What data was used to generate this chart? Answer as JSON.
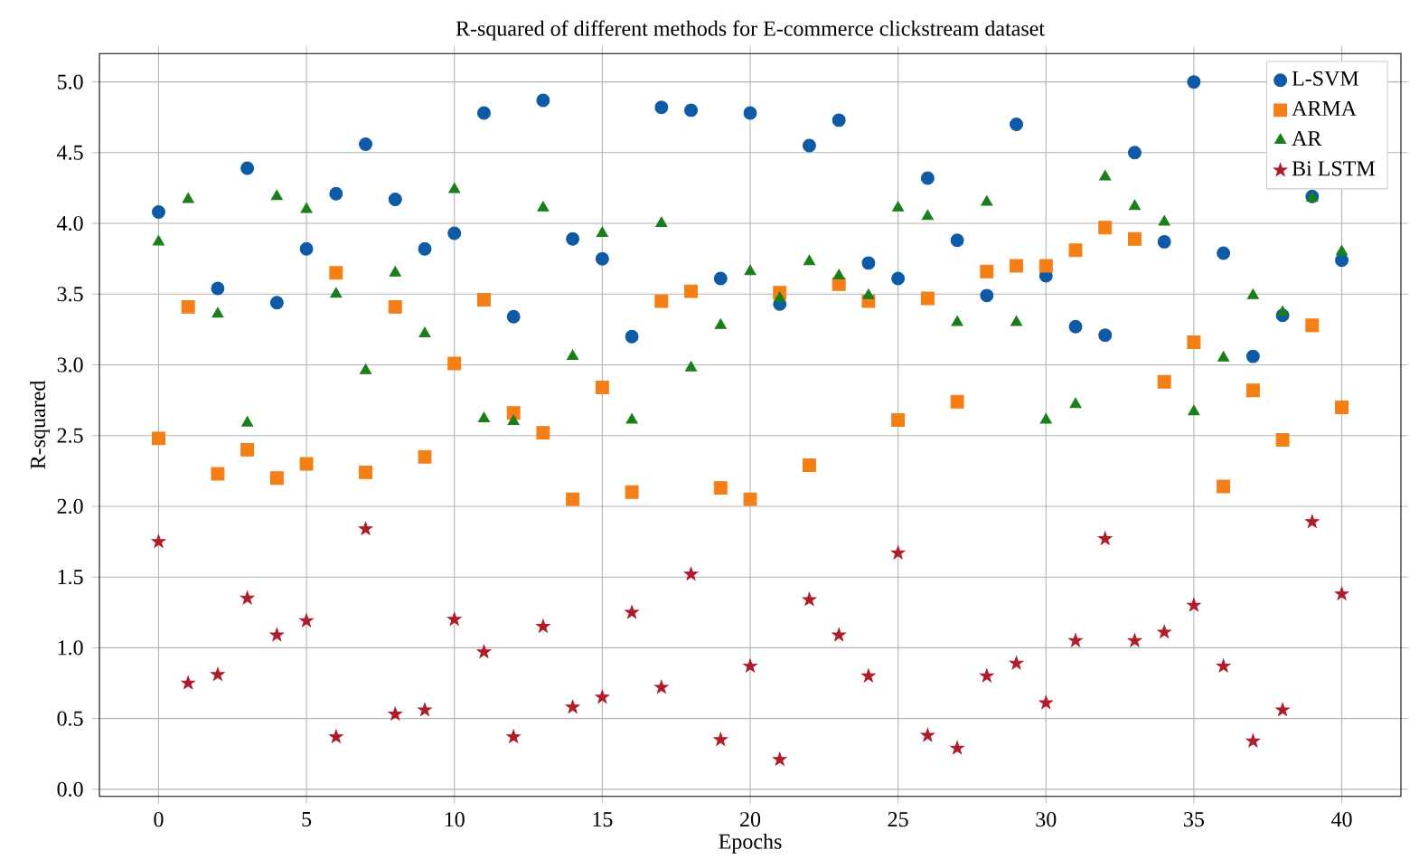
{
  "chart_data": {
    "type": "scatter",
    "title": "R-squared of different methods for E-commerce clickstream dataset",
    "xlabel": "Epochs",
    "ylabel": "R-squared",
    "x": [
      0,
      1,
      2,
      3,
      4,
      5,
      6,
      7,
      8,
      9,
      10,
      11,
      12,
      13,
      14,
      15,
      16,
      17,
      18,
      19,
      20,
      21,
      22,
      23,
      24,
      25,
      26,
      27,
      28,
      29,
      30,
      31,
      32,
      33,
      34,
      35,
      36,
      37,
      38,
      39,
      40
    ],
    "series": [
      {
        "name": "L-SVM",
        "color": "#0f5aa6",
        "marker": "circle",
        "values": [
          4.08,
          null,
          3.54,
          4.39,
          3.44,
          3.82,
          4.21,
          4.56,
          4.17,
          3.82,
          3.93,
          4.78,
          3.34,
          4.87,
          3.89,
          3.75,
          3.2,
          4.82,
          4.8,
          3.61,
          4.78,
          3.43,
          4.55,
          4.73,
          3.72,
          3.61,
          4.32,
          3.88,
          3.49,
          4.7,
          3.63,
          3.27,
          3.21,
          4.5,
          3.87,
          5.0,
          3.79,
          3.06,
          3.35,
          4.19,
          3.74
        ]
      },
      {
        "name": "ARMA",
        "color": "#f57f17",
        "marker": "square",
        "values": [
          2.48,
          3.41,
          2.23,
          2.4,
          2.2,
          2.3,
          3.65,
          2.24,
          3.41,
          2.35,
          3.01,
          3.46,
          2.66,
          2.52,
          2.05,
          2.84,
          2.1,
          3.45,
          3.52,
          2.13,
          2.05,
          3.51,
          2.29,
          3.57,
          3.45,
          2.61,
          3.47,
          2.74,
          3.66,
          3.7,
          3.7,
          3.81,
          3.97,
          3.89,
          2.88,
          3.16,
          2.14,
          2.82,
          2.47,
          3.28,
          2.7
        ]
      },
      {
        "name": "AR",
        "color": "#1a7f1a",
        "marker": "triangle",
        "values": [
          3.87,
          4.17,
          3.36,
          2.59,
          4.19,
          4.1,
          3.5,
          2.96,
          3.65,
          3.22,
          4.24,
          2.62,
          2.6,
          4.11,
          3.06,
          3.93,
          2.61,
          4.0,
          2.98,
          3.28,
          3.66,
          3.47,
          3.73,
          3.63,
          3.49,
          4.11,
          4.05,
          3.3,
          4.15,
          3.3,
          2.61,
          2.72,
          4.33,
          4.12,
          4.01,
          2.67,
          3.05,
          3.49,
          3.37,
          4.18,
          3.8
        ]
      },
      {
        "name": "Bi LSTM",
        "color": "#b01c2c",
        "marker": "star",
        "values": [
          1.75,
          0.75,
          0.81,
          1.35,
          1.09,
          1.19,
          0.37,
          1.84,
          0.53,
          0.56,
          1.2,
          0.97,
          0.37,
          1.15,
          0.58,
          0.65,
          1.25,
          0.72,
          1.52,
          0.35,
          0.87,
          0.21,
          1.34,
          1.09,
          0.8,
          1.67,
          0.38,
          0.29,
          0.8,
          0.89,
          0.61,
          1.05,
          1.77,
          1.05,
          1.11,
          1.3,
          0.87,
          0.34,
          0.56,
          1.89,
          1.38
        ]
      }
    ],
    "xlim": [
      -2,
      42
    ],
    "ylim": [
      -0.05,
      5.2
    ],
    "xticks": [
      0,
      5,
      10,
      15,
      20,
      25,
      30,
      35,
      40
    ],
    "yticks": [
      {
        "value": 0,
        "label": "0.0"
      },
      {
        "value": 0.5,
        "label": "0.5"
      },
      {
        "value": 1,
        "label": "1.0"
      },
      {
        "value": 1.5,
        "label": "1.5"
      },
      {
        "value": 2,
        "label": "2.0"
      },
      {
        "value": 2.5,
        "label": "2.5"
      },
      {
        "value": 3,
        "label": "3.0"
      },
      {
        "value": 3.5,
        "label": "3.5"
      },
      {
        "value": 4,
        "label": "4.0"
      },
      {
        "value": 4.5,
        "label": "4.5"
      },
      {
        "value": 5,
        "label": "5.0"
      }
    ],
    "grid": true,
    "legend": "top right"
  }
}
